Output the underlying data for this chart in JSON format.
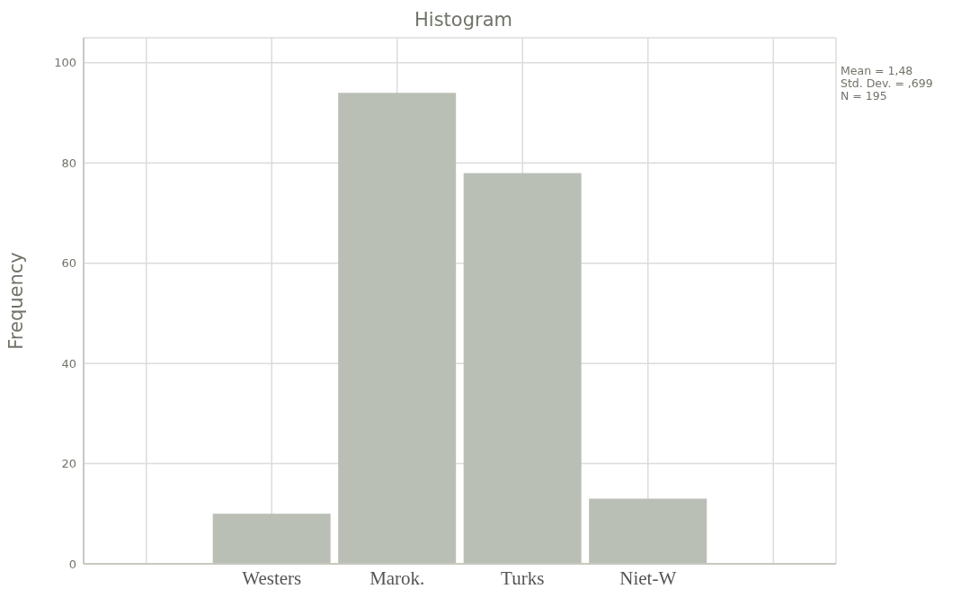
{
  "chart_data": {
    "type": "bar",
    "title": "Histogram",
    "ylabel": "Frequency",
    "categories": [
      null,
      "Westers",
      "Marok.",
      "Turks",
      "Niet-W",
      null
    ],
    "values": [
      null,
      10,
      94,
      78,
      13,
      null
    ],
    "color": "#babfb5",
    "ylim": [
      0,
      105
    ],
    "yticks": [
      0,
      20,
      40,
      60,
      80,
      100
    ],
    "grid": true,
    "annotations": [
      "Mean = 1,48",
      "Std. Dev. = ,699",
      "N = 195"
    ]
  }
}
